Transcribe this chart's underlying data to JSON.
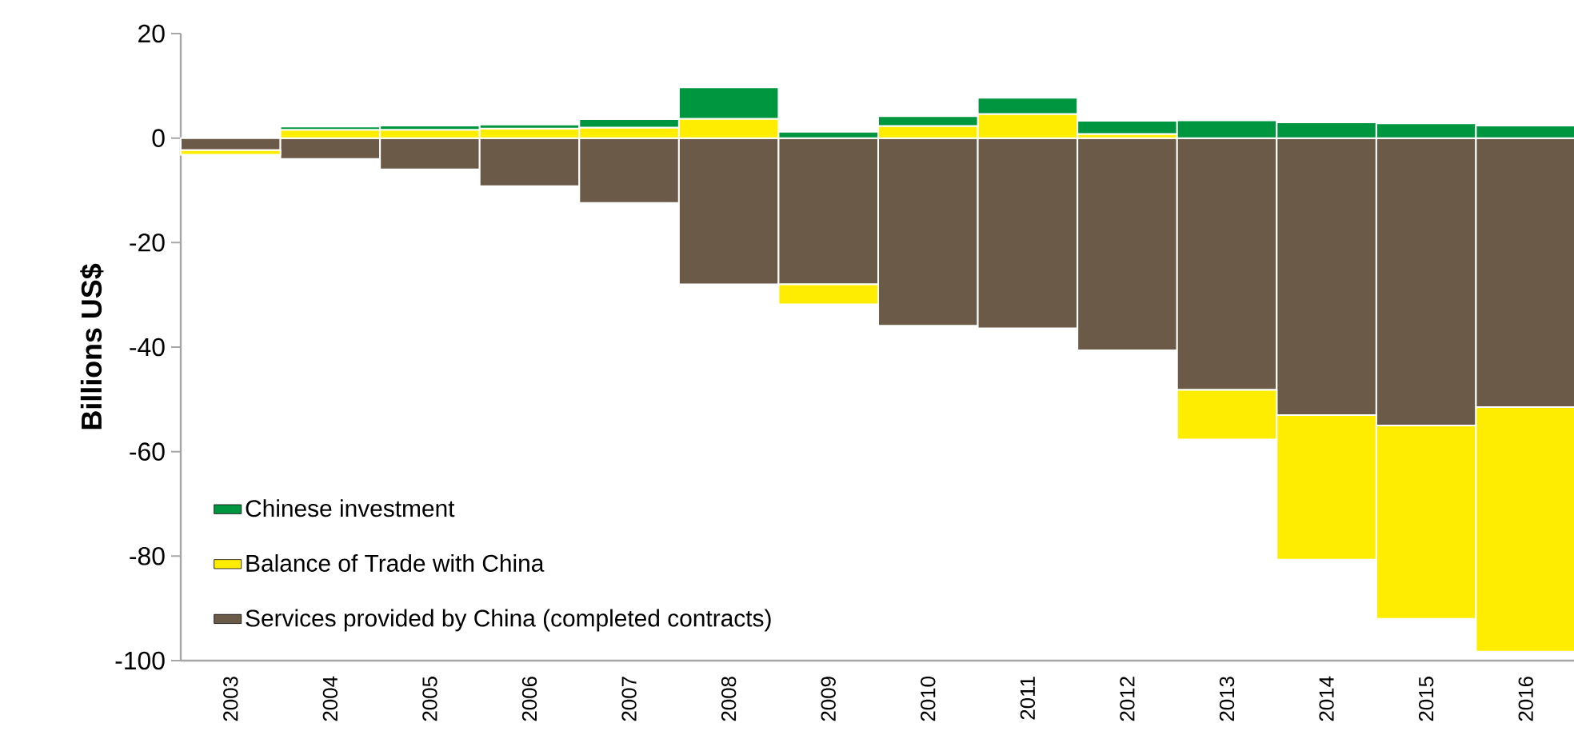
{
  "chart_data": {
    "type": "bar",
    "stacked": true,
    "ylabel": "Billions US$",
    "categories": [
      "2003",
      "2004",
      "2005",
      "2006",
      "2007",
      "2008",
      "2009",
      "2010",
      "2011",
      "2012",
      "2013",
      "2014",
      "2015",
      "2016"
    ],
    "series": [
      {
        "name": "Services provided by China (completed contracts)",
        "color": "#6b5a48",
        "values": [
          -2.3,
          -4,
          -6,
          -9.2,
          -12.4,
          -28,
          -28,
          -35.9,
          -36.4,
          -40.6,
          -48.2,
          -53,
          -55,
          -51.5
        ]
      },
      {
        "name": "Balance of Trade with China",
        "color": "#ffed00",
        "values": [
          -0.9,
          1.6,
          1.6,
          1.8,
          2.0,
          3.7,
          -3.8,
          2.3,
          4.6,
          0.8,
          -9.5,
          -27.7,
          -37.0,
          -46.8
        ]
      },
      {
        "name": "Chinese investment",
        "color": "#009640",
        "values": [
          null,
          0.6,
          0.8,
          0.8,
          1.6,
          6.0,
          1.2,
          1.9,
          3.1,
          2.5,
          3.4,
          3.0,
          2.8,
          2.4
        ]
      }
    ],
    "ylim": [
      -100,
      20
    ],
    "yticks": [
      -100,
      -80,
      -60,
      -40,
      -20,
      0,
      20
    ],
    "grid": false,
    "legend": "bottom left"
  }
}
